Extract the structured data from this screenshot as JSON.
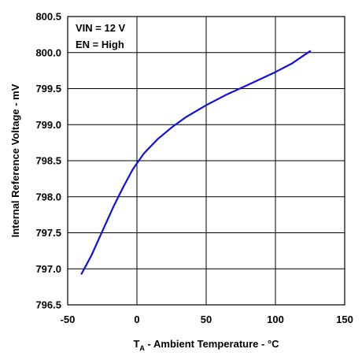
{
  "chart_data": {
    "type": "line",
    "title": "",
    "xlabel_main": "T",
    "xlabel_sub": "A",
    "xlabel_rest": " - Ambient Temperature - °C",
    "ylabel": "Internal Reference Voltage - mV",
    "xlim": [
      -50,
      150
    ],
    "ylim": [
      796.5,
      800.5
    ],
    "xticks": [
      -50,
      0,
      50,
      100,
      150
    ],
    "xtick_labels": [
      "-50",
      "0",
      "50",
      "100",
      "150"
    ],
    "yticks": [
      796.5,
      797.0,
      797.5,
      798.0,
      798.5,
      799.0,
      799.5,
      800.0,
      800.5
    ],
    "ytick_labels": [
      "796.5",
      "797.0",
      "797.5",
      "798.0",
      "798.5",
      "799.0",
      "799.5",
      "800.0",
      "800.5"
    ],
    "grid": true,
    "annotations": [
      "VIN = 12 V",
      "EN = High"
    ],
    "series": [
      {
        "color": "#1010dd",
        "x": [
          -40,
          -33,
          -25,
          -17,
          -10,
          -3,
          5,
          15,
          25,
          35,
          50,
          65,
          80,
          100,
          112,
          125
        ],
        "y": [
          796.93,
          797.18,
          797.52,
          797.86,
          798.13,
          798.38,
          798.6,
          798.8,
          798.96,
          799.1,
          799.27,
          799.42,
          799.55,
          799.73,
          799.85,
          800.02
        ]
      }
    ]
  }
}
